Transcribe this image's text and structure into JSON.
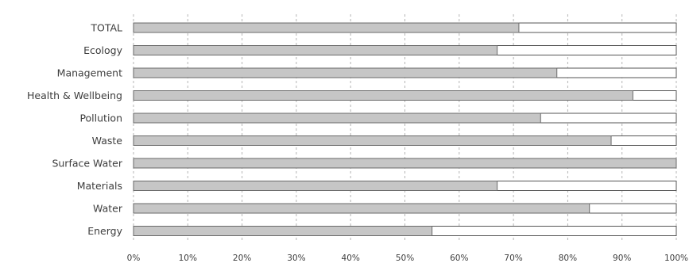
{
  "chart_data": {
    "type": "bar",
    "orientation": "horizontal",
    "stacked_to_100": true,
    "categories": [
      "TOTAL",
      "Ecology",
      "Management",
      "Health & Wellbeing",
      "Pollution",
      "Waste",
      "Surface Water",
      "Materials",
      "Water",
      "Energy"
    ],
    "values": [
      71,
      67,
      78,
      92,
      75,
      88,
      100,
      67,
      84,
      55
    ],
    "xlim": [
      0,
      100
    ],
    "xticks": [
      "0%",
      "10%",
      "20%",
      "30%",
      "40%",
      "50%",
      "60%",
      "70%",
      "80%",
      "90%",
      "100%"
    ],
    "grid": "vertical",
    "colors": {
      "fill": "#c6c6c6",
      "remainder": "#ffffff",
      "outline": "#555555",
      "grid": "#b5b5b5",
      "text": "#3d3d3d"
    }
  }
}
